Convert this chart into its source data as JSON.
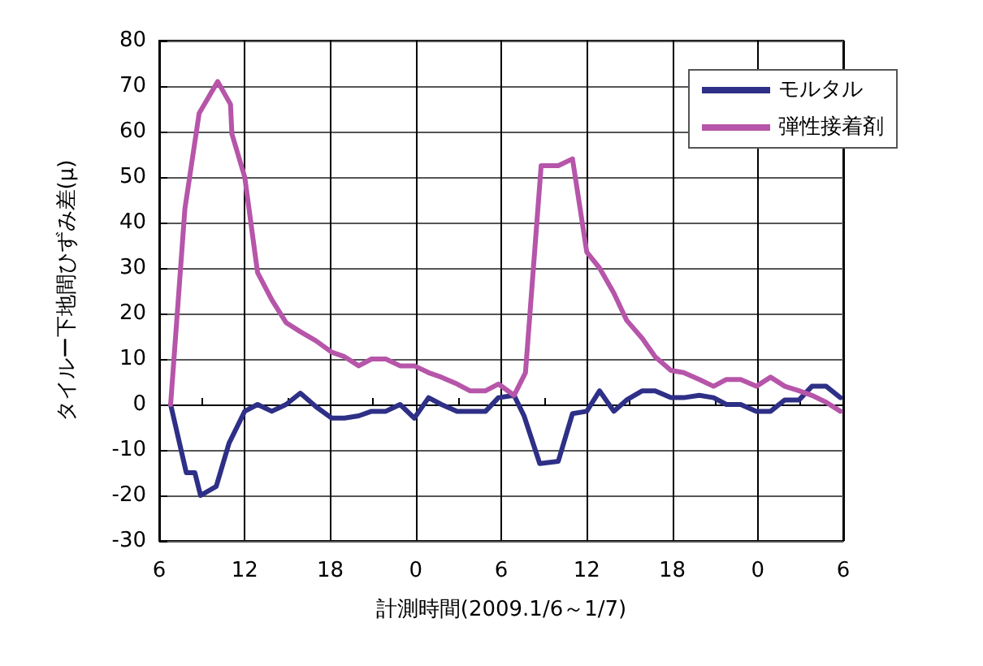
{
  "chart_data": {
    "type": "line",
    "xlabel": "計測時間(2009.1/6～1/7)",
    "ylabel": "タイルー下地間ひずみ差(μ)",
    "xlim": [
      "2009-01-06T06:00",
      "2009-01-08T06:00"
    ],
    "xticks": [
      {
        "value": "2009-01-06T06:00",
        "label": "6"
      },
      {
        "value": "2009-01-06T12:00",
        "label": "12"
      },
      {
        "value": "2009-01-06T18:00",
        "label": "18"
      },
      {
        "value": "2009-01-07T00:00",
        "label": "0"
      },
      {
        "value": "2009-01-07T06:00",
        "label": "6"
      },
      {
        "value": "2009-01-07T12:00",
        "label": "12"
      },
      {
        "value": "2009-01-07T18:00",
        "label": "18"
      },
      {
        "value": "2009-01-08T00:00",
        "label": "0"
      },
      {
        "value": "2009-01-08T06:00",
        "label": "6"
      }
    ],
    "ylim": [
      -30,
      80
    ],
    "yticks": [
      -30,
      -20,
      -10,
      0,
      10,
      20,
      30,
      40,
      50,
      60,
      70,
      80
    ],
    "grid": true,
    "legend": "top right",
    "marker": "none",
    "line_style": "solid",
    "series": [
      {
        "name": "モルタル",
        "color": "#2e2f86",
        "x": [
          "2009-01-06T06:48",
          "2009-01-06T07:54",
          "2009-01-06T08:30",
          "2009-01-06T08:54",
          "2009-01-06T10:00",
          "2009-01-06T10:54",
          "2009-01-06T12:00",
          "2009-01-06T12:54",
          "2009-01-06T13:54",
          "2009-01-06T14:54",
          "2009-01-06T15:54",
          "2009-01-06T17:00",
          "2009-01-06T18:06",
          "2009-01-06T19:00",
          "2009-01-06T20:00",
          "2009-01-06T20:54",
          "2009-01-06T21:54",
          "2009-01-06T22:54",
          "2009-01-06T23:54",
          "2009-01-07T00:54",
          "2009-01-07T01:48",
          "2009-01-07T02:54",
          "2009-01-07T03:48",
          "2009-01-07T04:54",
          "2009-01-07T05:48",
          "2009-01-07T06:54",
          "2009-01-07T07:36",
          "2009-01-07T08:42",
          "2009-01-07T10:00",
          "2009-01-07T11:00",
          "2009-01-07T12:00",
          "2009-01-07T12:54",
          "2009-01-07T13:54",
          "2009-01-07T14:48",
          "2009-01-07T15:54",
          "2009-01-07T16:48",
          "2009-01-07T17:54",
          "2009-01-07T18:48",
          "2009-01-07T19:54",
          "2009-01-07T20:54",
          "2009-01-07T21:48",
          "2009-01-07T22:48",
          "2009-01-07T23:54",
          "2009-01-08T00:54",
          "2009-01-08T01:54",
          "2009-01-08T02:54",
          "2009-01-08T03:48",
          "2009-01-08T04:48",
          "2009-01-08T05:48"
        ],
        "values": [
          0,
          -15,
          -15,
          -20,
          -18,
          -8.5,
          -1.5,
          0,
          -1.5,
          0,
          2.5,
          -0.5,
          -3,
          -3,
          -2.5,
          -1.5,
          -1.5,
          0,
          -3,
          1.5,
          0,
          -1.5,
          -1.5,
          -1.5,
          1.5,
          2,
          -2.5,
          -13,
          -12.5,
          -2,
          -1.5,
          3,
          -1.5,
          1,
          3,
          3,
          1.5,
          1.5,
          2,
          1.5,
          0,
          0,
          -1.5,
          -1.5,
          1,
          1,
          4,
          4,
          1.5
        ]
      },
      {
        "name": "弾性接着剤",
        "color": "#b655a9",
        "x": [
          "2009-01-06T06:48",
          "2009-01-06T07:48",
          "2009-01-06T08:48",
          "2009-01-06T10:06",
          "2009-01-06T11:00",
          "2009-01-06T11:06",
          "2009-01-06T12:00",
          "2009-01-06T12:54",
          "2009-01-06T13:54",
          "2009-01-06T14:54",
          "2009-01-06T15:54",
          "2009-01-06T17:00",
          "2009-01-06T18:06",
          "2009-01-06T19:00",
          "2009-01-06T20:00",
          "2009-01-06T20:54",
          "2009-01-06T21:54",
          "2009-01-06T22:54",
          "2009-01-06T23:54",
          "2009-01-07T00:54",
          "2009-01-07T01:48",
          "2009-01-07T02:54",
          "2009-01-07T03:48",
          "2009-01-07T04:54",
          "2009-01-07T05:48",
          "2009-01-07T06:54",
          "2009-01-07T07:42",
          "2009-01-07T08:48",
          "2009-01-07T10:00",
          "2009-01-07T11:00",
          "2009-01-07T12:00",
          "2009-01-07T12:54",
          "2009-01-07T13:54",
          "2009-01-07T14:48",
          "2009-01-07T15:54",
          "2009-01-07T16:48",
          "2009-01-07T17:54",
          "2009-01-07T18:48",
          "2009-01-07T19:54",
          "2009-01-07T20:54",
          "2009-01-07T21:48",
          "2009-01-07T22:48",
          "2009-01-07T23:54",
          "2009-01-08T00:54",
          "2009-01-08T01:54",
          "2009-01-08T02:54",
          "2009-01-08T03:48",
          "2009-01-08T04:48",
          "2009-01-08T05:48"
        ],
        "values": [
          0,
          43,
          64,
          71,
          66,
          59.5,
          50,
          29,
          23,
          18,
          16,
          14,
          11.5,
          10.5,
          8.5,
          10,
          10,
          8.5,
          8.5,
          7,
          6,
          4.5,
          3,
          3,
          4.5,
          2,
          7,
          52.5,
          52.5,
          54,
          33.5,
          30,
          24.5,
          18.5,
          14.5,
          10.5,
          7.5,
          7,
          5.5,
          4,
          5.5,
          5.5,
          4,
          6,
          4,
          3,
          2,
          0.5,
          -1.5
        ]
      }
    ]
  }
}
